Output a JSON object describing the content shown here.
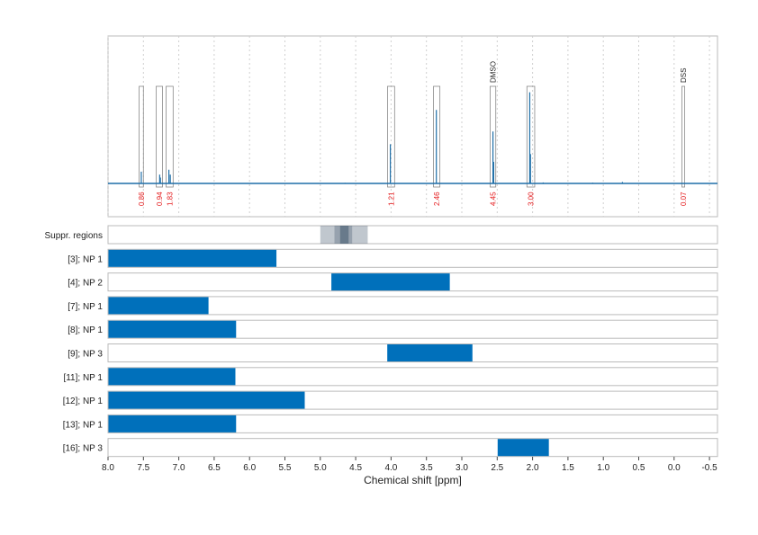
{
  "chart_data": [
    {
      "type": "line",
      "panel": "spectrum",
      "xlim": [
        8.0,
        -0.6
      ],
      "xlabel": "Chemical shift [ppm]",
      "ticks": [
        "8.0",
        "7.5",
        "7.0",
        "6.5",
        "6.0",
        "5.5",
        "5.0",
        "4.5",
        "4.0",
        "3.5",
        "3.0",
        "2.5",
        "2.0",
        "1.5",
        "1.0",
        "0.5",
        "0.0",
        "-0.5"
      ],
      "tick_values": [
        8.0,
        7.5,
        7.0,
        6.5,
        6.0,
        5.5,
        5.0,
        4.5,
        4.0,
        3.5,
        3.0,
        2.5,
        2.0,
        1.5,
        1.0,
        0.5,
        0.0,
        -0.5
      ],
      "grid": true,
      "peaks": [
        {
          "ppm": 7.53,
          "height": 0.12
        },
        {
          "ppm": 7.27,
          "height": 0.09
        },
        {
          "ppm": 7.26,
          "height": 0.06
        },
        {
          "ppm": 7.14,
          "height": 0.14
        },
        {
          "ppm": 7.12,
          "height": 0.09
        },
        {
          "ppm": 4.01,
          "height": 0.4
        },
        {
          "ppm": 3.36,
          "height": 0.75
        },
        {
          "ppm": 2.56,
          "height": 0.53
        },
        {
          "ppm": 2.55,
          "height": 0.22
        },
        {
          "ppm": 2.04,
          "height": 0.93
        },
        {
          "ppm": 2.03,
          "height": 0.3
        },
        {
          "ppm": 0.73,
          "height": 0.015
        },
        {
          "ppm": 1.15,
          "height": 0.008
        },
        {
          "ppm": 1.85,
          "height": 0.01
        },
        {
          "ppm": 4.65,
          "height": 0.006
        }
      ],
      "integrals": [
        {
          "from": 7.56,
          "to": 7.5,
          "label": "0.86"
        },
        {
          "from": 7.32,
          "to": 7.23,
          "label": "0.94"
        },
        {
          "from": 7.18,
          "to": 7.08,
          "label": "1.83"
        },
        {
          "from": 4.05,
          "to": 3.95,
          "label": "1.21"
        },
        {
          "from": 3.4,
          "to": 3.31,
          "label": "2.46"
        },
        {
          "from": 2.6,
          "to": 2.52,
          "label": "4.45"
        },
        {
          "from": 2.08,
          "to": 1.97,
          "label": "3.00"
        },
        {
          "from": -0.11,
          "to": -0.15,
          "label": "0.07"
        }
      ],
      "reference_labels": [
        {
          "ppm": 2.56,
          "label": "DMSO"
        },
        {
          "ppm": -0.13,
          "label": "DSS"
        }
      ],
      "color": "#1f6fa8"
    },
    {
      "type": "bar",
      "panel": "ranges",
      "suppressed_regions": {
        "label": "Suppr. regions",
        "bands": [
          {
            "from": 5.0,
            "to": 4.33,
            "opacity": 0.35
          },
          {
            "from": 4.8,
            "to": 4.55,
            "opacity": 0.35
          },
          {
            "from": 4.72,
            "to": 4.6,
            "opacity": 0.6
          }
        ]
      },
      "rows": [
        {
          "label": "[3]; NP 1",
          "from": 8.0,
          "to": 5.62
        },
        {
          "label": "[4]; NP 2",
          "from": 4.85,
          "to": 3.17
        },
        {
          "label": "[7]; NP 1",
          "from": 8.0,
          "to": 6.58
        },
        {
          "label": "[8]; NP 1",
          "from": 8.0,
          "to": 6.19
        },
        {
          "label": "[9]; NP 3",
          "from": 4.06,
          "to": 2.85
        },
        {
          "label": "[11]; NP 1",
          "from": 8.0,
          "to": 6.2
        },
        {
          "label": "[12]; NP 1",
          "from": 8.0,
          "to": 5.22
        },
        {
          "label": "[13]; NP 1",
          "from": 8.0,
          "to": 6.19
        },
        {
          "label": "[16]; NP 3",
          "from": 2.5,
          "to": 1.77
        }
      ],
      "bar_color": "#0070bb"
    }
  ]
}
